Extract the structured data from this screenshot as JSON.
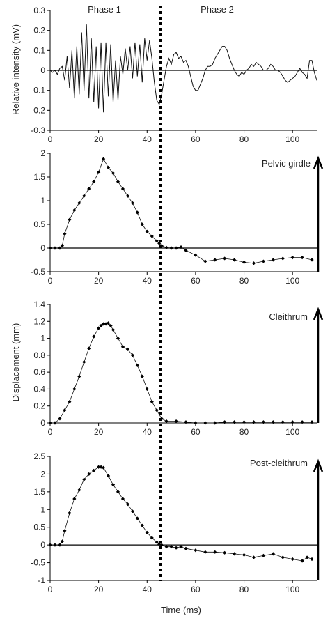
{
  "chart_data": [
    {
      "type": "line",
      "id": "emg",
      "ylabel": "Relative intensity (mV)",
      "xlabel": "",
      "xlim": [
        0,
        110
      ],
      "ylim": [
        -0.3,
        0.3
      ],
      "yticks": [
        -0.3,
        -0.2,
        -0.1,
        0,
        0.1,
        0.2,
        0.3
      ],
      "ytick_labels": [
        "-0.3",
        "-0.2",
        "-0.1",
        "0",
        "0.1",
        "0.2",
        "0.3"
      ],
      "xticks": [
        0,
        20,
        40,
        60,
        80,
        100
      ],
      "xtick_labels": [
        "0",
        "20",
        "40",
        "60",
        "80",
        "100"
      ],
      "annotations": [
        "Phase 1",
        "Phase 2"
      ],
      "series": [
        {
          "x": [
            0,
            1,
            2,
            3,
            4,
            5,
            6,
            7,
            8,
            9,
            10,
            11,
            12,
            13,
            14,
            15,
            16,
            17,
            18,
            19,
            20,
            21,
            22,
            23,
            24,
            25,
            26,
            27,
            28,
            29,
            30,
            31,
            32,
            33,
            34,
            35,
            36,
            37,
            38,
            39,
            40,
            41,
            42,
            43,
            44,
            45,
            46,
            47,
            48,
            49,
            50,
            51,
            52,
            53,
            54,
            55,
            56,
            57,
            58,
            59,
            60,
            61,
            62,
            63,
            64,
            65,
            66,
            67,
            68,
            69,
            70,
            71,
            72,
            73,
            74,
            75,
            76,
            77,
            78,
            79,
            80,
            81,
            82,
            83,
            84,
            85,
            86,
            87,
            88,
            89,
            90,
            91,
            92,
            93,
            94,
            95,
            96,
            97,
            98,
            99,
            100,
            101,
            102,
            103,
            104,
            105,
            106,
            107,
            108,
            109,
            110
          ],
          "y": [
            0.0,
            -0.01,
            0.0,
            -0.02,
            0.01,
            0.02,
            -0.05,
            0.07,
            -0.09,
            0.1,
            -0.14,
            0.12,
            -0.12,
            0.19,
            -0.1,
            0.23,
            -0.14,
            0.16,
            -0.16,
            0.12,
            -0.19,
            0.14,
            -0.21,
            0.14,
            -0.13,
            0.13,
            -0.16,
            0.05,
            -0.15,
            0.07,
            -0.02,
            0.11,
            0.0,
            0.12,
            -0.04,
            0.14,
            -0.03,
            0.13,
            -0.06,
            0.16,
            0.05,
            0.15,
            0.06,
            -0.06,
            -0.15,
            -0.17,
            -0.12,
            -0.05,
            0.02,
            0.06,
            0.03,
            0.08,
            0.09,
            0.06,
            0.07,
            0.04,
            0.05,
            0.02,
            -0.03,
            -0.08,
            -0.1,
            -0.1,
            -0.07,
            -0.04,
            0.0,
            0.02,
            0.02,
            0.03,
            0.06,
            0.08,
            0.1,
            0.12,
            0.12,
            0.1,
            0.06,
            0.03,
            0.0,
            -0.02,
            -0.03,
            -0.01,
            -0.02,
            0.0,
            0.01,
            0.03,
            0.02,
            0.04,
            0.03,
            0.02,
            0.0,
            0.0,
            0.01,
            0.03,
            0.02,
            0.0,
            0.0,
            -0.01,
            -0.03,
            -0.05,
            -0.06,
            -0.05,
            -0.04,
            -0.03,
            -0.01,
            0.01,
            -0.01,
            -0.02,
            -0.04,
            0.05,
            0.05,
            -0.01,
            -0.05
          ]
        }
      ]
    },
    {
      "type": "line",
      "id": "pelvic",
      "ylabel": "",
      "xlim": [
        0,
        110
      ],
      "ylim": [
        -0.5,
        2
      ],
      "yticks": [
        -0.5,
        0,
        0.5,
        1,
        1.5,
        2
      ],
      "ytick_labels": [
        "-0.5",
        "0",
        "0.5",
        "1",
        "1.5",
        "2"
      ],
      "xticks": [
        0,
        20,
        40,
        60,
        80,
        100
      ],
      "xtick_labels": [
        "0",
        "20",
        "40",
        "60",
        "80",
        "100"
      ],
      "annotations": [
        "Pelvic girdle"
      ],
      "series": [
        {
          "x": [
            0,
            2,
            4,
            5,
            6,
            8,
            10,
            12,
            14,
            16,
            18,
            20,
            22,
            24,
            26,
            28,
            30,
            32,
            34,
            36,
            38,
            40,
            42,
            44,
            45,
            46,
            48,
            50,
            52,
            54,
            56,
            60,
            64,
            68,
            72,
            76,
            80,
            84,
            88,
            92,
            96,
            100,
            104,
            108
          ],
          "y": [
            0,
            0,
            0,
            0.05,
            0.3,
            0.6,
            0.8,
            0.95,
            1.1,
            1.25,
            1.4,
            1.6,
            1.88,
            1.7,
            1.58,
            1.4,
            1.25,
            1.1,
            0.95,
            0.75,
            0.5,
            0.35,
            0.25,
            0.15,
            0.1,
            0.05,
            0.01,
            0,
            0,
            0.02,
            -0.05,
            -0.15,
            -0.28,
            -0.25,
            -0.22,
            -0.25,
            -0.3,
            -0.32,
            -0.28,
            -0.25,
            -0.22,
            -0.2,
            -0.2,
            -0.25
          ]
        }
      ]
    },
    {
      "type": "line",
      "id": "cleithrum",
      "ylabel": "Displacement (mm)",
      "xlim": [
        0,
        110
      ],
      "ylim": [
        0,
        1.4
      ],
      "yticks": [
        0,
        0.2,
        0.4,
        0.6,
        0.8,
        1,
        1.2,
        1.4
      ],
      "ytick_labels": [
        "0",
        "0.2",
        "0.4",
        "0.6",
        "0.8",
        "1",
        "1.2",
        "1.4"
      ],
      "xticks": [
        0,
        20,
        40,
        60,
        80,
        100
      ],
      "xtick_labels": [
        "0",
        "20",
        "40",
        "60",
        "80",
        "100"
      ],
      "annotations": [
        "Cleithrum"
      ],
      "series": [
        {
          "x": [
            0,
            2,
            4,
            6,
            8,
            10,
            12,
            14,
            16,
            18,
            20,
            21,
            22,
            23,
            24,
            25,
            26,
            28,
            30,
            32,
            34,
            36,
            38,
            40,
            42,
            44,
            46,
            48,
            52,
            56,
            60,
            64,
            68,
            72,
            76,
            80,
            84,
            88,
            92,
            96,
            100,
            104,
            108
          ],
          "y": [
            0,
            0,
            0.05,
            0.15,
            0.25,
            0.4,
            0.55,
            0.72,
            0.88,
            1.02,
            1.12,
            1.15,
            1.17,
            1.17,
            1.18,
            1.15,
            1.1,
            1.0,
            0.9,
            0.87,
            0.8,
            0.68,
            0.55,
            0.4,
            0.25,
            0.15,
            0.05,
            0.02,
            0.02,
            0.01,
            0,
            0,
            0,
            0.01,
            0.01,
            0.01,
            0.01,
            0.01,
            0.01,
            0.01,
            0.01,
            0.01,
            0.01
          ]
        }
      ]
    },
    {
      "type": "line",
      "id": "postcleithrum",
      "ylabel": "",
      "xlabel": "Time (ms)",
      "xlim": [
        0,
        110
      ],
      "ylim": [
        -1,
        2.5
      ],
      "yticks": [
        -1,
        -0.5,
        0,
        0.5,
        1,
        1.5,
        2,
        2.5
      ],
      "ytick_labels": [
        "-1",
        "-0.5",
        "0",
        "0.5",
        "1",
        "1.5",
        "2",
        "2.5"
      ],
      "xticks": [
        0,
        20,
        40,
        60,
        80,
        100
      ],
      "xtick_labels": [
        "0",
        "20",
        "40",
        "60",
        "80",
        "100"
      ],
      "annotations": [
        "Post-cleithrum"
      ],
      "series": [
        {
          "x": [
            0,
            2,
            4,
            5,
            6,
            8,
            10,
            12,
            14,
            16,
            18,
            20,
            21,
            22,
            24,
            26,
            28,
            30,
            32,
            34,
            36,
            38,
            40,
            42,
            44,
            45,
            46,
            48,
            50,
            52,
            54,
            56,
            60,
            64,
            68,
            72,
            76,
            80,
            84,
            88,
            92,
            96,
            100,
            104,
            106,
            108
          ],
          "y": [
            0,
            0,
            0,
            0.1,
            0.4,
            0.9,
            1.3,
            1.55,
            1.85,
            2.0,
            2.1,
            2.2,
            2.2,
            2.18,
            1.95,
            1.7,
            1.5,
            1.3,
            1.15,
            0.95,
            0.75,
            0.55,
            0.35,
            0.2,
            0.08,
            0.02,
            0,
            -0.05,
            -0.05,
            -0.08,
            -0.05,
            -0.1,
            -0.15,
            -0.2,
            -0.2,
            -0.22,
            -0.25,
            -0.28,
            -0.35,
            -0.3,
            -0.25,
            -0.35,
            -0.4,
            -0.45,
            -0.35,
            -0.4
          ]
        }
      ]
    }
  ]
}
